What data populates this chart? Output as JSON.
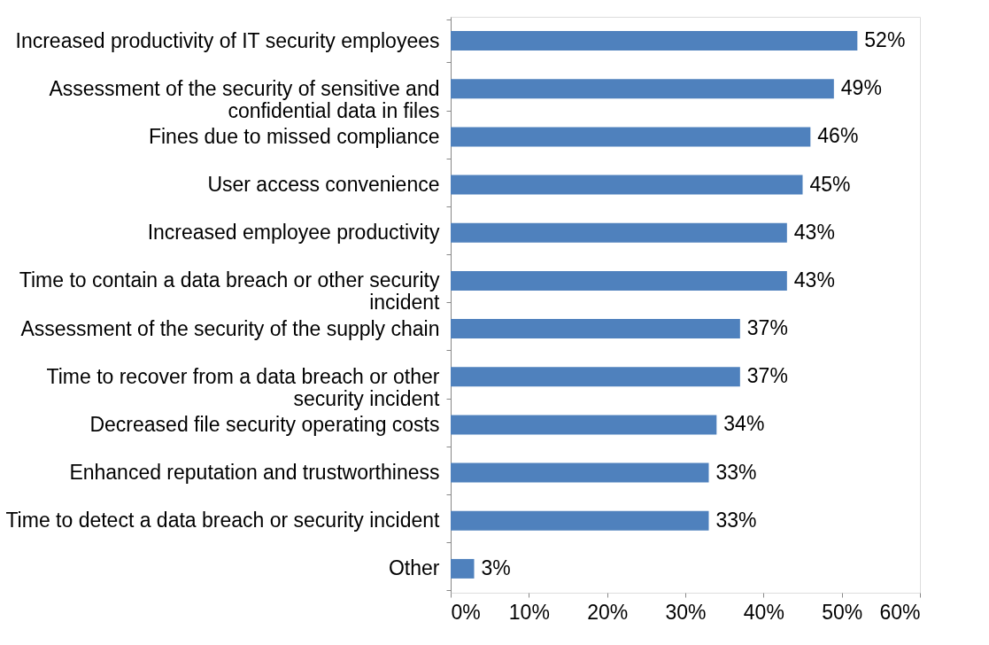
{
  "chart_data": {
    "type": "bar",
    "orientation": "horizontal",
    "categories": [
      "Increased productivity of IT security employees",
      "Assessment of the security of sensitive and confidential data in files",
      "Fines due to missed compliance",
      "User access convenience",
      "Increased employee productivity",
      "Time to contain a data breach or other security incident",
      "Assessment of the security of the supply chain",
      "Time to recover from a data breach or other security incident",
      "Decreased file security operating costs",
      "Enhanced reputation and trustworthiness",
      "Time to detect a data breach or security incident",
      "Other"
    ],
    "values": [
      52,
      49,
      46,
      45,
      43,
      43,
      37,
      37,
      34,
      33,
      33,
      3
    ],
    "value_labels": [
      "52%",
      "49%",
      "46%",
      "45%",
      "43%",
      "43%",
      "37%",
      "37%",
      "34%",
      "33%",
      "33%",
      "3%"
    ],
    "color": "#4f81bd",
    "xlim": [
      0,
      60
    ],
    "xticks": [
      {
        "value": 0,
        "label": "0%"
      },
      {
        "value": 10,
        "label": "10%"
      },
      {
        "value": 20,
        "label": "20%"
      },
      {
        "value": 30,
        "label": "30%"
      },
      {
        "value": 40,
        "label": "40%"
      },
      {
        "value": 50,
        "label": "50%"
      },
      {
        "value": 60,
        "label": "60%"
      }
    ],
    "grid": false
  }
}
